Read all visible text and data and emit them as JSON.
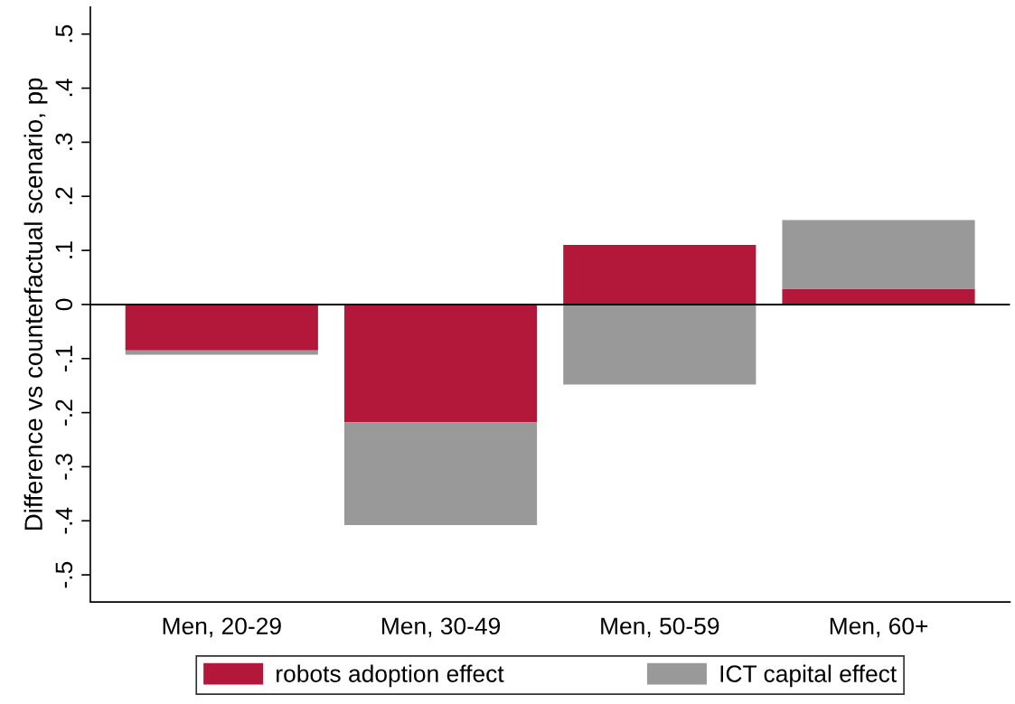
{
  "chart_data": {
    "type": "bar",
    "ylabel": "Difference vs counterfactual scenario, pp",
    "categories": [
      "Men, 20-29",
      "Men, 30-49",
      "Men, 50-59",
      "Men, 60+"
    ],
    "series": [
      {
        "name": "robots adoption effect",
        "color": "#b3173a",
        "values": [
          -0.085,
          -0.218,
          0.11,
          0.029
        ]
      },
      {
        "name": "ICT capital effect",
        "color": "#999999",
        "values": [
          -0.008,
          -0.19,
          -0.148,
          0.127
        ]
      }
    ],
    "stacked": true,
    "ylim": [
      -0.55,
      0.55
    ],
    "yticks": [
      {
        "value": -0.5,
        "label": "-.5"
      },
      {
        "value": -0.4,
        "label": "-.4"
      },
      {
        "value": -0.3,
        "label": "-.3"
      },
      {
        "value": -0.2,
        "label": "-.2"
      },
      {
        "value": -0.1,
        "label": "-.1"
      },
      0,
      {
        "value": 0.1,
        "label": ".1"
      },
      {
        "value": 0.2,
        "label": ".2"
      },
      {
        "value": 0.3,
        "label": ".3"
      },
      {
        "value": 0.4,
        "label": ".4"
      },
      {
        "value": 0.5,
        "label": ".5"
      }
    ],
    "ref_lines": [
      {
        "axis": "y",
        "value": 0,
        "color": "#000000"
      }
    ],
    "grid": false,
    "legend": "bottom"
  }
}
